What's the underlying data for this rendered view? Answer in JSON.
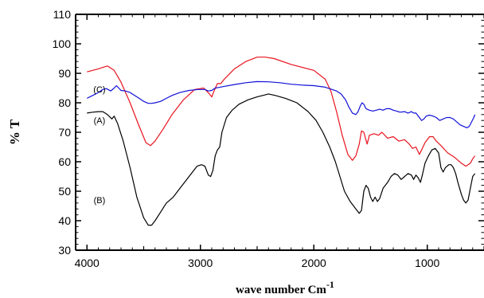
{
  "chart_data": {
    "type": "line",
    "title": "",
    "xlabel": "wave number Cm",
    "xlabel_superscript": "-1",
    "ylabel": "% T",
    "xlim": [
      4100,
      500
    ],
    "ylim": [
      30,
      110
    ],
    "x_reversed": true,
    "x_ticks": [
      4000,
      3000,
      2000,
      1000
    ],
    "y_ticks": [
      30,
      40,
      50,
      60,
      70,
      80,
      90,
      100,
      110
    ],
    "grid": false,
    "legend": "none",
    "series": [
      {
        "label": "(A)",
        "color": "#e8141e",
        "label_at": [
          3890,
          73
        ],
        "points": [
          [
            4000,
            90.5
          ],
          [
            3900,
            91.5
          ],
          [
            3820,
            92.5
          ],
          [
            3760,
            91
          ],
          [
            3700,
            87
          ],
          [
            3620,
            80
          ],
          [
            3550,
            73
          ],
          [
            3480,
            66.5
          ],
          [
            3440,
            65.5
          ],
          [
            3400,
            67
          ],
          [
            3330,
            71
          ],
          [
            3250,
            76
          ],
          [
            3150,
            81
          ],
          [
            3050,
            84.5
          ],
          [
            2970,
            85
          ],
          [
            2920,
            83
          ],
          [
            2900,
            82
          ],
          [
            2880,
            84
          ],
          [
            2850,
            86.5
          ],
          [
            2820,
            86.5
          ],
          [
            2790,
            88
          ],
          [
            2700,
            91.5
          ],
          [
            2600,
            94
          ],
          [
            2500,
            95.5
          ],
          [
            2430,
            95.5
          ],
          [
            2350,
            95
          ],
          [
            2200,
            93
          ],
          [
            2000,
            91
          ],
          [
            1900,
            88
          ],
          [
            1850,
            84
          ],
          [
            1800,
            77
          ],
          [
            1750,
            69
          ],
          [
            1700,
            62.5
          ],
          [
            1660,
            60.5
          ],
          [
            1630,
            62
          ],
          [
            1600,
            66
          ],
          [
            1580,
            70.5
          ],
          [
            1560,
            70
          ],
          [
            1530,
            66
          ],
          [
            1510,
            69
          ],
          [
            1470,
            69.5
          ],
          [
            1430,
            69
          ],
          [
            1400,
            70
          ],
          [
            1350,
            68
          ],
          [
            1300,
            68.5
          ],
          [
            1250,
            67
          ],
          [
            1200,
            67.5
          ],
          [
            1160,
            66
          ],
          [
            1130,
            64.5
          ],
          [
            1100,
            65
          ],
          [
            1070,
            62.5
          ],
          [
            1050,
            64
          ],
          [
            1020,
            66.5
          ],
          [
            980,
            68.5
          ],
          [
            950,
            68.5
          ],
          [
            920,
            67
          ],
          [
            880,
            65.5
          ],
          [
            820,
            63
          ],
          [
            760,
            61.5
          ],
          [
            700,
            59.5
          ],
          [
            660,
            58.5
          ],
          [
            620,
            59.5
          ],
          [
            600,
            61
          ],
          [
            580,
            62
          ]
        ]
      },
      {
        "label": "(B)",
        "color": "#000000",
        "label_at": [
          3890,
          46
        ],
        "points": [
          [
            4000,
            76.5
          ],
          [
            3950,
            76.8
          ],
          [
            3900,
            77
          ],
          [
            3860,
            77
          ],
          [
            3820,
            76
          ],
          [
            3780,
            74.5
          ],
          [
            3760,
            75.5
          ],
          [
            3730,
            73
          ],
          [
            3680,
            67
          ],
          [
            3620,
            58
          ],
          [
            3560,
            48
          ],
          [
            3500,
            41
          ],
          [
            3460,
            38.5
          ],
          [
            3430,
            38.5
          ],
          [
            3400,
            40
          ],
          [
            3350,
            43
          ],
          [
            3300,
            46
          ],
          [
            3240,
            48
          ],
          [
            3180,
            51
          ],
          [
            3100,
            55
          ],
          [
            3030,
            58.5
          ],
          [
            2990,
            59
          ],
          [
            2960,
            58.5
          ],
          [
            2930,
            55.5
          ],
          [
            2910,
            55
          ],
          [
            2890,
            57
          ],
          [
            2870,
            62
          ],
          [
            2850,
            64
          ],
          [
            2830,
            65
          ],
          [
            2810,
            70
          ],
          [
            2770,
            75
          ],
          [
            2720,
            77.5
          ],
          [
            2660,
            79.5
          ],
          [
            2580,
            81
          ],
          [
            2500,
            82
          ],
          [
            2450,
            82.5
          ],
          [
            2400,
            83
          ],
          [
            2340,
            82.5
          ],
          [
            2250,
            81.5
          ],
          [
            2150,
            80
          ],
          [
            2050,
            77
          ],
          [
            1980,
            74
          ],
          [
            1920,
            70
          ],
          [
            1860,
            65
          ],
          [
            1810,
            60
          ],
          [
            1770,
            55
          ],
          [
            1730,
            50
          ],
          [
            1680,
            46.5
          ],
          [
            1630,
            44
          ],
          [
            1600,
            42.5
          ],
          [
            1580,
            43.5
          ],
          [
            1560,
            50
          ],
          [
            1540,
            52
          ],
          [
            1520,
            51
          ],
          [
            1500,
            48
          ],
          [
            1480,
            46.5
          ],
          [
            1460,
            48
          ],
          [
            1440,
            46.5
          ],
          [
            1420,
            47.5
          ],
          [
            1390,
            51
          ],
          [
            1350,
            53
          ],
          [
            1320,
            55
          ],
          [
            1290,
            56
          ],
          [
            1260,
            55.5
          ],
          [
            1230,
            54
          ],
          [
            1200,
            55
          ],
          [
            1170,
            56
          ],
          [
            1140,
            55.5
          ],
          [
            1120,
            54
          ],
          [
            1100,
            55.5
          ],
          [
            1080,
            54.5
          ],
          [
            1060,
            53
          ],
          [
            1040,
            56
          ],
          [
            1020,
            59.5
          ],
          [
            990,
            62
          ],
          [
            960,
            64
          ],
          [
            930,
            64.5
          ],
          [
            900,
            63
          ],
          [
            880,
            58
          ],
          [
            860,
            56.5
          ],
          [
            840,
            58
          ],
          [
            810,
            59
          ],
          [
            790,
            59
          ],
          [
            770,
            58
          ],
          [
            750,
            56
          ],
          [
            730,
            53
          ],
          [
            700,
            49
          ],
          [
            680,
            47
          ],
          [
            660,
            46
          ],
          [
            640,
            47
          ],
          [
            620,
            51
          ],
          [
            600,
            55
          ],
          [
            580,
            56
          ]
        ]
      },
      {
        "label": "(C)",
        "color": "#1010d8",
        "label_at": [
          3890,
          83.5
        ],
        "points": [
          [
            4000,
            81.5
          ],
          [
            3950,
            82.5
          ],
          [
            3900,
            83.5
          ],
          [
            3860,
            84.5
          ],
          [
            3830,
            84.8
          ],
          [
            3790,
            84
          ],
          [
            3760,
            85
          ],
          [
            3740,
            85.8
          ],
          [
            3720,
            85
          ],
          [
            3700,
            84.2
          ],
          [
            3660,
            84
          ],
          [
            3620,
            83.5
          ],
          [
            3580,
            82.5
          ],
          [
            3540,
            81.5
          ],
          [
            3500,
            80.5
          ],
          [
            3460,
            79.8
          ],
          [
            3430,
            79.8
          ],
          [
            3400,
            80
          ],
          [
            3350,
            80.5
          ],
          [
            3300,
            81.5
          ],
          [
            3250,
            82.5
          ],
          [
            3180,
            83.5
          ],
          [
            3100,
            84.2
          ],
          [
            3020,
            84.5
          ],
          [
            2960,
            84.5
          ],
          [
            2930,
            84
          ],
          [
            2900,
            84.2
          ],
          [
            2870,
            85
          ],
          [
            2840,
            85.2
          ],
          [
            2800,
            85.5
          ],
          [
            2700,
            86.2
          ],
          [
            2600,
            86.8
          ],
          [
            2500,
            87.2
          ],
          [
            2400,
            87.1
          ],
          [
            2300,
            86.8
          ],
          [
            2200,
            86.3
          ],
          [
            2100,
            86
          ],
          [
            2000,
            85.8
          ],
          [
            1900,
            85.3
          ],
          [
            1840,
            84.5
          ],
          [
            1800,
            84
          ],
          [
            1760,
            83
          ],
          [
            1720,
            81
          ],
          [
            1690,
            78.5
          ],
          [
            1660,
            76.5
          ],
          [
            1630,
            76
          ],
          [
            1610,
            77
          ],
          [
            1590,
            79
          ],
          [
            1575,
            80
          ],
          [
            1560,
            79.5
          ],
          [
            1540,
            78
          ],
          [
            1510,
            77.5
          ],
          [
            1480,
            77.2
          ],
          [
            1450,
            77.5
          ],
          [
            1420,
            77.8
          ],
          [
            1390,
            77.5
          ],
          [
            1360,
            78
          ],
          [
            1330,
            78
          ],
          [
            1300,
            77.5
          ],
          [
            1270,
            77.2
          ],
          [
            1240,
            76.8
          ],
          [
            1200,
            77
          ],
          [
            1170,
            76.5
          ],
          [
            1140,
            77
          ],
          [
            1120,
            76.5
          ],
          [
            1100,
            76.5
          ],
          [
            1070,
            75
          ],
          [
            1050,
            74
          ],
          [
            1030,
            74.5
          ],
          [
            1010,
            75.5
          ],
          [
            980,
            75.8
          ],
          [
            950,
            75.5
          ],
          [
            920,
            75
          ],
          [
            890,
            74
          ],
          [
            860,
            74.5
          ],
          [
            830,
            75
          ],
          [
            800,
            75
          ],
          [
            770,
            74.5
          ],
          [
            740,
            73.5
          ],
          [
            710,
            72.5
          ],
          [
            680,
            72
          ],
          [
            650,
            71.5
          ],
          [
            630,
            72
          ],
          [
            610,
            73.5
          ],
          [
            590,
            75
          ],
          [
            580,
            76
          ]
        ]
      }
    ]
  }
}
